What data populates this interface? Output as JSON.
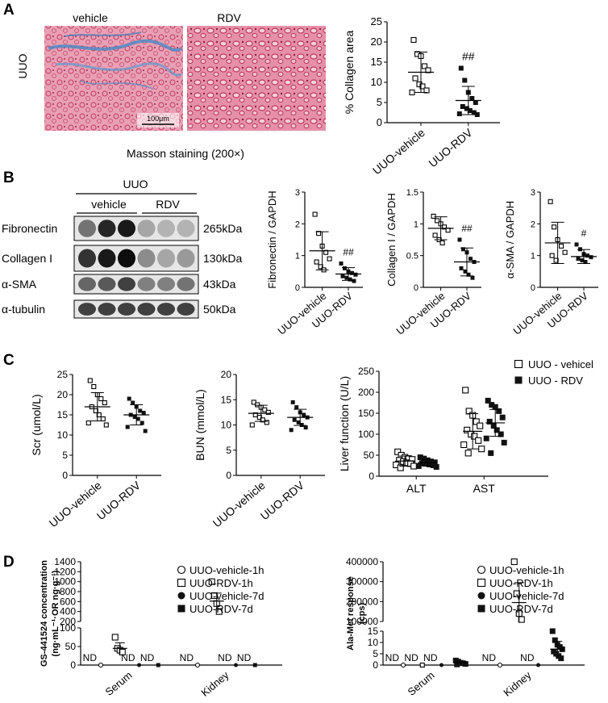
{
  "panels": {
    "A": {
      "letter": "A",
      "side_label": "UUO",
      "img_labels": [
        "vehicle",
        "RDV"
      ],
      "scale_bar": "100μm",
      "caption": "Masson staining (200×)"
    },
    "B": {
      "letter": "B",
      "blot_group": "UUO",
      "blot_lanes": [
        "vehicle",
        "RDV"
      ],
      "blot_rows": [
        {
          "name": "Fibronectin",
          "size": "265kDa"
        },
        {
          "name": "Collagen I",
          "size": "130kDa"
        },
        {
          "name": "α-SMA",
          "size": "43kDa"
        },
        {
          "name": "α-tubulin",
          "size": "50kDa"
        }
      ]
    },
    "C": {
      "letter": "C"
    },
    "D": {
      "letter": "D"
    }
  },
  "chart_data": [
    {
      "id": "collagen-area",
      "type": "scatter",
      "ylabel": "% Collagen area",
      "categories": [
        "UUO-vehicle",
        "UUO-RDV"
      ],
      "ylim": [
        0,
        25
      ],
      "yticks": [
        0,
        5,
        10,
        15,
        20,
        25
      ],
      "series": [
        {
          "category": "UUO-vehicle",
          "marker": "open-square",
          "mean": 12.5,
          "sd": 5,
          "values": [
            20.5,
            17,
            16.5,
            14,
            13,
            11,
            9.5,
            9,
            8,
            7.5
          ]
        },
        {
          "category": "UUO-RDV",
          "marker": "filled-square",
          "mean": 5.5,
          "sd": 3.5,
          "values": [
            13.5,
            10.5,
            7.5,
            6,
            5,
            4,
            3.5,
            3,
            2.5,
            2.2,
            2
          ]
        }
      ],
      "annotations": [
        {
          "category": "UUO-RDV",
          "text": "##"
        }
      ]
    },
    {
      "id": "fibronectin",
      "type": "scatter",
      "ylabel": "Fibronectin / GAPDH",
      "categories": [
        "UUO-vehicle",
        "UUO-RDV"
      ],
      "ylim": [
        0,
        3.0
      ],
      "yticks": [
        0,
        1.0,
        2.0,
        3.0
      ],
      "series": [
        {
          "category": "UUO-vehicle",
          "marker": "open-square",
          "mean": 1.15,
          "sd": 0.6,
          "values": [
            2.3,
            1.7,
            1.3,
            1.1,
            0.9,
            0.8,
            0.65,
            0.55
          ]
        },
        {
          "category": "UUO-RDV",
          "marker": "filled-square",
          "mean": 0.42,
          "sd": 0.2,
          "values": [
            0.75,
            0.6,
            0.5,
            0.45,
            0.4,
            0.35,
            0.3,
            0.25,
            0.2
          ]
        }
      ],
      "annotations": [
        {
          "category": "UUO-RDV",
          "text": "##"
        }
      ]
    },
    {
      "id": "collagen-i",
      "type": "scatter",
      "ylabel": "Collagen I / GAPDH",
      "categories": [
        "UUO-vehicle",
        "UUO-RDV"
      ],
      "ylim": [
        0,
        1.5
      ],
      "yticks": [
        0,
        0.5,
        1.0,
        1.5
      ],
      "series": [
        {
          "category": "UUO-vehicle",
          "marker": "open-square",
          "mean": 0.93,
          "sd": 0.18,
          "values": [
            1.12,
            1.05,
            1.0,
            0.95,
            0.9,
            0.82,
            0.75,
            0.7
          ]
        },
        {
          "category": "UUO-RDV",
          "marker": "filled-square",
          "mean": 0.4,
          "sd": 0.22,
          "values": [
            0.75,
            0.6,
            0.55,
            0.45,
            0.4,
            0.3,
            0.25,
            0.2,
            0.15
          ]
        }
      ],
      "annotations": [
        {
          "category": "UUO-RDV",
          "text": "##"
        }
      ]
    },
    {
      "id": "asma",
      "type": "scatter",
      "ylabel": "α-SMA / GAPDH",
      "categories": [
        "UUO-vehicle",
        "UUO-RDV"
      ],
      "ylim": [
        0,
        3.0
      ],
      "yticks": [
        0,
        1.0,
        2.0,
        3.0
      ],
      "series": [
        {
          "category": "UUO-vehicle",
          "marker": "open-square",
          "mean": 1.4,
          "sd": 0.65,
          "values": [
            2.7,
            1.9,
            1.5,
            1.3,
            1.1,
            1.0,
            0.85
          ]
        },
        {
          "category": "UUO-RDV",
          "marker": "filled-square",
          "mean": 0.97,
          "sd": 0.22,
          "values": [
            1.35,
            1.2,
            1.05,
            1.0,
            0.95,
            0.9,
            0.85,
            0.8
          ]
        }
      ],
      "annotations": [
        {
          "category": "UUO-RDV",
          "text": "#"
        }
      ]
    },
    {
      "id": "scr",
      "type": "scatter",
      "ylabel": "Scr (umol/L)",
      "categories": [
        "UUO-vehicle",
        "UUO-RDV"
      ],
      "ylim": [
        0,
        25
      ],
      "yticks": [
        0,
        5,
        10,
        15,
        20,
        25
      ],
      "series": [
        {
          "category": "UUO-vehicle",
          "marker": "open-square",
          "mean": 17,
          "sd": 3.5,
          "values": [
            23.5,
            22,
            20,
            19,
            18,
            17,
            16,
            15,
            14,
            13,
            12.5
          ]
        },
        {
          "category": "UUO-RDV",
          "marker": "filled-square",
          "mean": 15,
          "sd": 2.5,
          "values": [
            19,
            18,
            17,
            16,
            15.5,
            15,
            14.5,
            14,
            13,
            12,
            11
          ]
        }
      ]
    },
    {
      "id": "bun",
      "type": "scatter",
      "ylabel": "BUN (mmol/L)",
      "categories": [
        "UUO-vehicle",
        "UUO-RDV"
      ],
      "ylim": [
        0,
        20
      ],
      "yticks": [
        0,
        5,
        10,
        15,
        20
      ],
      "series": [
        {
          "category": "UUO-vehicle",
          "marker": "open-square",
          "mean": 12.3,
          "sd": 1.6,
          "values": [
            14.5,
            14,
            13.5,
            13,
            12.5,
            12,
            11.5,
            11,
            10.5,
            10
          ]
        },
        {
          "category": "UUO-RDV",
          "marker": "filled-square",
          "mean": 11.5,
          "sd": 1.6,
          "values": [
            14.5,
            13.5,
            12.5,
            12,
            11.5,
            11,
            10.5,
            10,
            9.5,
            9
          ]
        }
      ]
    },
    {
      "id": "liver",
      "type": "scatter",
      "ylabel": "Liver function (U/L)",
      "categories": [
        "ALT",
        "AST"
      ],
      "ylim": [
        0,
        250
      ],
      "yticks": [
        0,
        50,
        100,
        150,
        200,
        250
      ],
      "legend": {
        "position": "top-right",
        "entries": [
          {
            "label": "UUO - vehicel",
            "marker": "open-square"
          },
          {
            "label": "UUO - RDV",
            "marker": "filled-square"
          }
        ]
      },
      "series": [
        {
          "category": "ALT",
          "group": 0,
          "marker": "open-square",
          "mean": 36,
          "sd": 12,
          "values": [
            58,
            50,
            45,
            42,
            40,
            38,
            35,
            32,
            30,
            27,
            24,
            20
          ]
        },
        {
          "category": "ALT",
          "group": 1,
          "marker": "filled-square",
          "mean": 32,
          "sd": 8,
          "values": [
            45,
            42,
            38,
            35,
            33,
            31,
            30,
            28,
            26,
            24,
            22
          ]
        },
        {
          "category": "AST",
          "group": 0,
          "marker": "open-square",
          "mean": 107,
          "sd": 42,
          "values": [
            205,
            155,
            145,
            130,
            120,
            110,
            100,
            95,
            85,
            75,
            65,
            55
          ]
        },
        {
          "category": "AST",
          "group": 1,
          "marker": "filled-square",
          "mean": 127,
          "sd": 32,
          "values": [
            180,
            170,
            165,
            155,
            140,
            130,
            120,
            110,
            100,
            90,
            80,
            55
          ]
        }
      ]
    },
    {
      "id": "gs441524",
      "type": "scatter",
      "ylabel": "GS-441524 concentration",
      "ylabel2": "(ng·mL⁻¹·OR ng·g⁻¹)",
      "categories": [
        "Serum",
        "Kidney"
      ],
      "ylim_lower": [
        0,
        100
      ],
      "yticks_lower": [
        0,
        50,
        100
      ],
      "ylim_upper": [
        200,
        1400
      ],
      "yticks_upper": [
        200,
        400,
        600,
        800,
        1000,
        1200,
        1400
      ],
      "legend": {
        "position": "top-right",
        "entries": [
          {
            "label": "UUO-vehicle-1h",
            "marker": "open-circle"
          },
          {
            "label": "UUO-RDV-1h",
            "marker": "open-square"
          },
          {
            "label": "UUO-vehicle-7d",
            "marker": "filled-circle"
          },
          {
            "label": "UUO-RDV-7d",
            "marker": "filled-square"
          }
        ]
      },
      "nd_label": "ND",
      "groups": [
        {
          "category": "Serum",
          "slot": 0,
          "marker": "open-circle",
          "nd": true,
          "values": [
            0
          ]
        },
        {
          "category": "Serum",
          "slot": 1,
          "marker": "open-square",
          "nd": false,
          "mean": 45,
          "sd": 15,
          "values": [
            75,
            45,
            40,
            35
          ]
        },
        {
          "category": "Serum",
          "slot": 2,
          "marker": "filled-circle",
          "nd": true,
          "values": [
            0
          ]
        },
        {
          "category": "Serum",
          "slot": 3,
          "marker": "filled-square",
          "nd": true,
          "values": [
            0
          ]
        },
        {
          "category": "Kidney",
          "slot": 0,
          "marker": "open-circle",
          "nd": true,
          "values": [
            0
          ]
        },
        {
          "category": "Kidney",
          "slot": 1,
          "marker": "open-square",
          "nd": false,
          "mean": 610,
          "sd": 160,
          "values": [
            1000,
            720,
            560,
            400
          ]
        },
        {
          "category": "Kidney",
          "slot": 2,
          "marker": "filled-circle",
          "nd": true,
          "values": [
            0
          ]
        },
        {
          "category": "Kidney",
          "slot": 3,
          "marker": "filled-square",
          "nd": true,
          "values": [
            0
          ]
        }
      ]
    },
    {
      "id": "ala-met",
      "type": "scatter",
      "ylabel": "Ala-Met response",
      "ylabel2": "(cps)",
      "categories": [
        "Serum",
        "Kidney"
      ],
      "ylim_lower": [
        0,
        15
      ],
      "yticks_lower": [
        0,
        5,
        10,
        15
      ],
      "ylim_upper": [
        100000,
        400000
      ],
      "yticks_upper": [
        100000,
        200000,
        300000,
        400000
      ],
      "legend": {
        "position": "top-right",
        "entries": [
          {
            "label": "UUO-vehicle-1h",
            "marker": "open-circle"
          },
          {
            "label": "UUO-RDV-1h",
            "marker": "open-square"
          },
          {
            "label": "UUO-vehicle-7d",
            "marker": "filled-circle"
          },
          {
            "label": "UUO-RDV-7d",
            "marker": "filled-square"
          }
        ]
      },
      "nd_label": "ND",
      "groups": [
        {
          "category": "Serum",
          "slot": 0,
          "marker": "open-circle",
          "nd": true,
          "values": [
            0
          ]
        },
        {
          "category": "Serum",
          "slot": 1,
          "marker": "open-square",
          "nd": true,
          "values": [
            0
          ]
        },
        {
          "category": "Serum",
          "slot": 2,
          "marker": "filled-circle",
          "nd": true,
          "values": [
            0
          ]
        },
        {
          "category": "Serum",
          "slot": 3,
          "marker": "filled-square",
          "nd": false,
          "mean": 1,
          "sd": 0.5,
          "values": [
            2,
            1.5,
            1,
            0.8,
            0.5,
            0.3
          ]
        },
        {
          "category": "Kidney",
          "slot": 0,
          "marker": "open-circle",
          "nd": true,
          "values": [
            0
          ]
        },
        {
          "category": "Kidney",
          "slot": 1,
          "marker": "open-square",
          "nd": false,
          "mean": 195000,
          "sd": 100000,
          "values": [
            400000,
            240000,
            140000,
            110000
          ]
        },
        {
          "category": "Kidney",
          "slot": 2,
          "marker": "filled-circle",
          "nd": true,
          "values": [
            0
          ]
        },
        {
          "category": "Kidney",
          "slot": 3,
          "marker": "filled-square",
          "nd": false,
          "mean": 7,
          "sd": 3.5,
          "values": [
            15,
            11,
            9,
            8,
            7,
            6,
            5,
            4,
            3
          ]
        }
      ]
    }
  ]
}
